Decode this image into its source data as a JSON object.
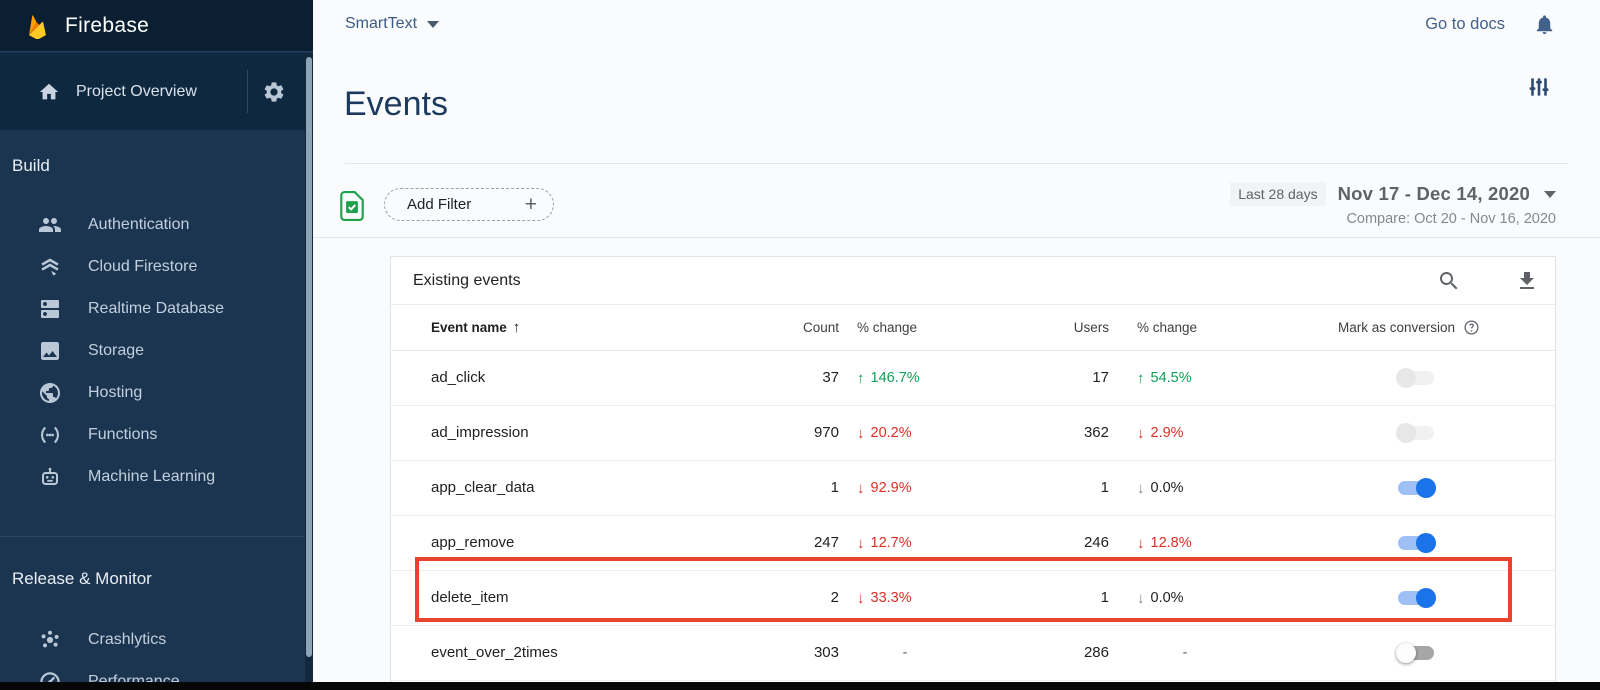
{
  "brand": {
    "name": "Firebase"
  },
  "topbar": {
    "project_selector": "SmartText",
    "go_to_docs": "Go to docs"
  },
  "sidebar": {
    "project_overview": {
      "label": "Project Overview"
    },
    "sections": [
      {
        "label": "Build",
        "items": [
          {
            "icon": "people-icon",
            "label": "Authentication"
          },
          {
            "icon": "firestore-icon",
            "label": "Cloud Firestore"
          },
          {
            "icon": "database-icon",
            "label": "Realtime Database"
          },
          {
            "icon": "storage-icon",
            "label": "Storage"
          },
          {
            "icon": "globe-icon",
            "label": "Hosting"
          },
          {
            "icon": "functions-icon",
            "label": "Functions"
          },
          {
            "icon": "robot-icon",
            "label": "Machine Learning"
          }
        ]
      },
      {
        "label": "Release & Monitor",
        "items": [
          {
            "icon": "crashlytics-icon",
            "label": "Crashlytics"
          },
          {
            "icon": "speedometer-icon",
            "label": "Performance"
          }
        ]
      }
    ]
  },
  "page": {
    "title": "Events"
  },
  "filters": {
    "add_filter": "Add Filter",
    "range_chip": "Last 28 days",
    "date_range": "Nov 17 - Dec 14, 2020",
    "compare": "Compare: Oct 20 - Nov 16, 2020"
  },
  "table": {
    "title": "Existing events",
    "columns": {
      "event_name": "Event name",
      "count": "Count",
      "count_change": "% change",
      "users": "Users",
      "users_change": "% change",
      "conversion": "Mark as conversion"
    },
    "rows": [
      {
        "name": "ad_click",
        "count": "37",
        "count_change": {
          "arrow": "up",
          "value": "146.7%",
          "tone": "positive"
        },
        "users": "17",
        "users_change": {
          "arrow": "up",
          "value": "54.5%",
          "tone": "positive"
        },
        "toggle": "disabled-off",
        "highlighted": false
      },
      {
        "name": "ad_impression",
        "count": "970",
        "count_change": {
          "arrow": "down",
          "value": "20.2%",
          "tone": "negative"
        },
        "users": "362",
        "users_change": {
          "arrow": "down",
          "value": "2.9%",
          "tone": "negative"
        },
        "toggle": "disabled-off",
        "highlighted": false
      },
      {
        "name": "app_clear_data",
        "count": "1",
        "count_change": {
          "arrow": "down",
          "value": "92.9%",
          "tone": "negative"
        },
        "users": "1",
        "users_change": {
          "arrow": "down",
          "value": "0.0%",
          "tone": "neutral"
        },
        "toggle": "on",
        "highlighted": false
      },
      {
        "name": "app_remove",
        "count": "247",
        "count_change": {
          "arrow": "down",
          "value": "12.7%",
          "tone": "negative"
        },
        "users": "246",
        "users_change": {
          "arrow": "down",
          "value": "12.8%",
          "tone": "negative"
        },
        "toggle": "on",
        "highlighted": false
      },
      {
        "name": "delete_item",
        "count": "2",
        "count_change": {
          "arrow": "down",
          "value": "33.3%",
          "tone": "negative"
        },
        "users": "1",
        "users_change": {
          "arrow": "down",
          "value": "0.0%",
          "tone": "neutral"
        },
        "toggle": "on",
        "highlighted": true
      },
      {
        "name": "event_over_2times",
        "count": "303",
        "count_change": {
          "arrow": "none",
          "value": "-",
          "tone": "none"
        },
        "users": "286",
        "users_change": {
          "arrow": "none",
          "value": "-",
          "tone": "none"
        },
        "toggle": "off",
        "highlighted": false
      }
    ]
  },
  "colors": {
    "positive": "#0f9d58",
    "negative": "#d93025",
    "toggle_on": "#1a73e8",
    "highlight_border": "#e8432c",
    "sidebar_bg": "#1b3551",
    "brand_flame": "#ffca28"
  }
}
